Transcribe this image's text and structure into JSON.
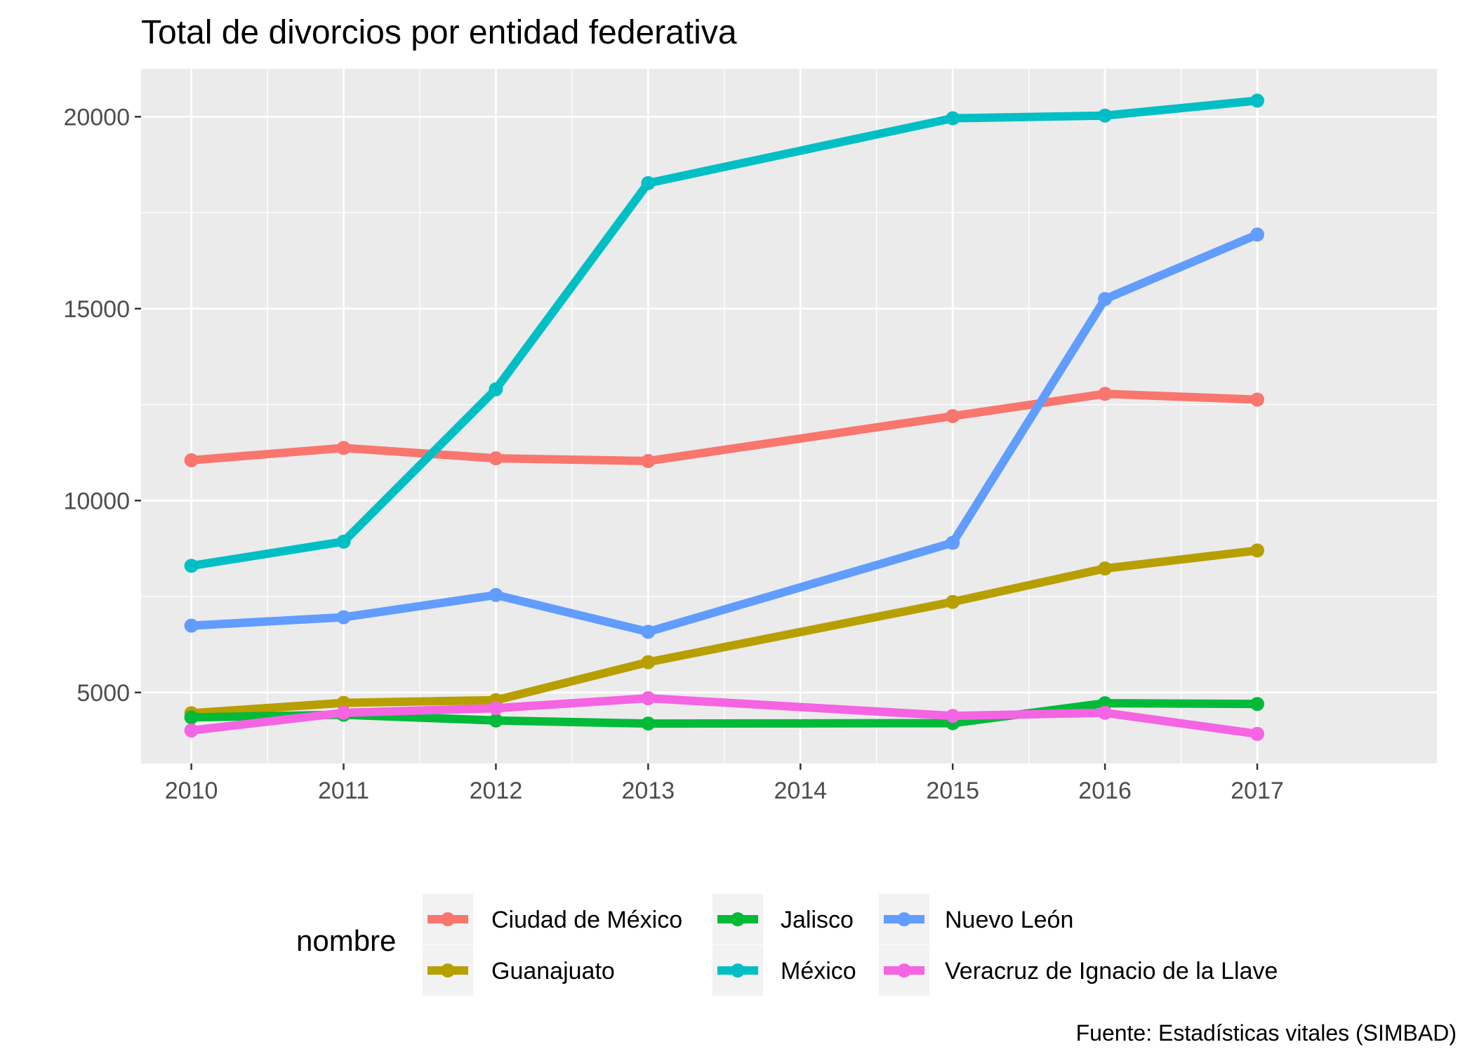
{
  "chart_data": {
    "type": "line",
    "title": "Total de divorcios por entidad federativa",
    "caption": "Fuente: Estadísticas vitales (SIMBAD)",
    "xlabel": "",
    "ylabel": "",
    "legend_title": "nombre",
    "legend_position": "bottom",
    "grid": true,
    "x": [
      "2010",
      "2011",
      "2012",
      "2013",
      "2014",
      "2015",
      "2016",
      "2017"
    ],
    "xlim": [
      2009.67,
      2018.18
    ],
    "ylim": [
      3150,
      21250
    ],
    "y_ticks": [
      5000,
      10000,
      15000,
      20000
    ],
    "series": [
      {
        "name": "Ciudad de México",
        "color": "#F8766D",
        "x": [
          2010,
          2011,
          2012,
          2013,
          2015,
          2016,
          2017
        ],
        "values": [
          11050,
          11370,
          11100,
          11030,
          12200,
          12780,
          12630
        ]
      },
      {
        "name": "Guanajuato",
        "color": "#B79F00",
        "x": [
          2010,
          2011,
          2012,
          2013,
          2015,
          2016,
          2017
        ],
        "values": [
          4460,
          4730,
          4800,
          5790,
          7360,
          8230,
          8700
        ]
      },
      {
        "name": "Jalisco",
        "color": "#00BA38",
        "x": [
          2010,
          2011,
          2012,
          2013,
          2015,
          2016,
          2017
        ],
        "values": [
          4350,
          4420,
          4270,
          4190,
          4200,
          4720,
          4700
        ]
      },
      {
        "name": "México",
        "color": "#00BFC4",
        "x": [
          2010,
          2011,
          2012,
          2013,
          2015,
          2016,
          2017
        ],
        "values": [
          8300,
          8930,
          12900,
          18270,
          19960,
          20030,
          20420
        ]
      },
      {
        "name": "Nuevo León",
        "color": "#619CFF",
        "x": [
          2010,
          2011,
          2012,
          2013,
          2015,
          2016,
          2017
        ],
        "values": [
          6740,
          6960,
          7540,
          6580,
          8900,
          15250,
          16930
        ]
      },
      {
        "name": "Veracruz de Ignacio de la Llave",
        "color": "#F564E3",
        "x": [
          2010,
          2011,
          2012,
          2013,
          2015,
          2016,
          2017
        ],
        "values": [
          4010,
          4470,
          4590,
          4850,
          4390,
          4470,
          3920
        ]
      }
    ]
  }
}
